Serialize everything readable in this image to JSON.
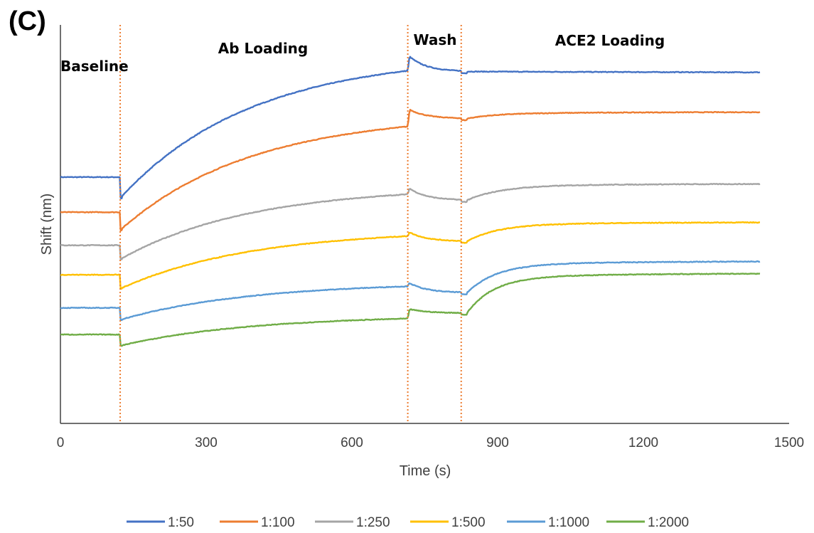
{
  "panel_label": "(C)",
  "chart_data": {
    "type": "line",
    "xlabel": "Time (s)",
    "ylabel": "Shift (nm)",
    "xlim": [
      0,
      1500
    ],
    "x_ticks": [
      "0",
      "300",
      "600",
      "900",
      "1200",
      "1500"
    ],
    "y_ticks_shown": false,
    "grid": false,
    "legend_position": "bottom",
    "phase_boundaries_s": [
      123,
      715,
      825
    ],
    "phase_boundary_color": "#ED7D31",
    "phases": [
      {
        "label": "Baseline",
        "start": 0,
        "end": 123
      },
      {
        "label": "Ab Loading",
        "start": 123,
        "end": 715
      },
      {
        "label": "Wash",
        "start": 715,
        "end": 825
      },
      {
        "label": "ACE2 Loading",
        "start": 825,
        "end": 1440
      }
    ],
    "series": [
      {
        "name": "1:50",
        "color": "#4472C4",
        "baseline": 0.618,
        "ab_start_dip": 0.565,
        "ab_end": 0.885,
        "wash_peak": 0.925,
        "wash_end": 0.883,
        "ace2_end": 0.878,
        "ace2_tau": 500,
        "wash_rise": 0.005
      },
      {
        "name": "1:100",
        "color": "#ED7D31",
        "baseline": 0.53,
        "ab_start_dip": 0.485,
        "ab_end": 0.745,
        "wash_peak": 0.79,
        "wash_end": 0.765,
        "ace2_end": 0.778,
        "ace2_tau": 60,
        "wash_rise": 0.01
      },
      {
        "name": "1:250",
        "color": "#A5A5A5",
        "baseline": 0.447,
        "ab_start_dip": 0.412,
        "ab_end": 0.575,
        "wash_peak": 0.593,
        "wash_end": 0.56,
        "ace2_end": 0.597,
        "ace2_tau": 70,
        "wash_rise": 0.012
      },
      {
        "name": "1:500",
        "color": "#FFC000",
        "baseline": 0.373,
        "ab_start_dip": 0.338,
        "ab_end": 0.47,
        "wash_peak": 0.482,
        "wash_end": 0.457,
        "ace2_end": 0.5,
        "ace2_tau": 65,
        "wash_rise": 0.014
      },
      {
        "name": "1:1000",
        "color": "#5B9BD5",
        "baseline": 0.29,
        "ab_start_dip": 0.26,
        "ab_end": 0.344,
        "wash_peak": 0.355,
        "wash_end": 0.328,
        "ace2_end": 0.4,
        "ace2_tau": 60,
        "wash_rise": 0.02
      },
      {
        "name": "1:2000",
        "color": "#70AD47",
        "baseline": 0.223,
        "ab_start_dip": 0.195,
        "ab_end": 0.263,
        "wash_peak": 0.288,
        "wash_end": 0.277,
        "ace2_end": 0.368,
        "ace2_tau": 55,
        "wash_rise": 0.025
      }
    ]
  }
}
